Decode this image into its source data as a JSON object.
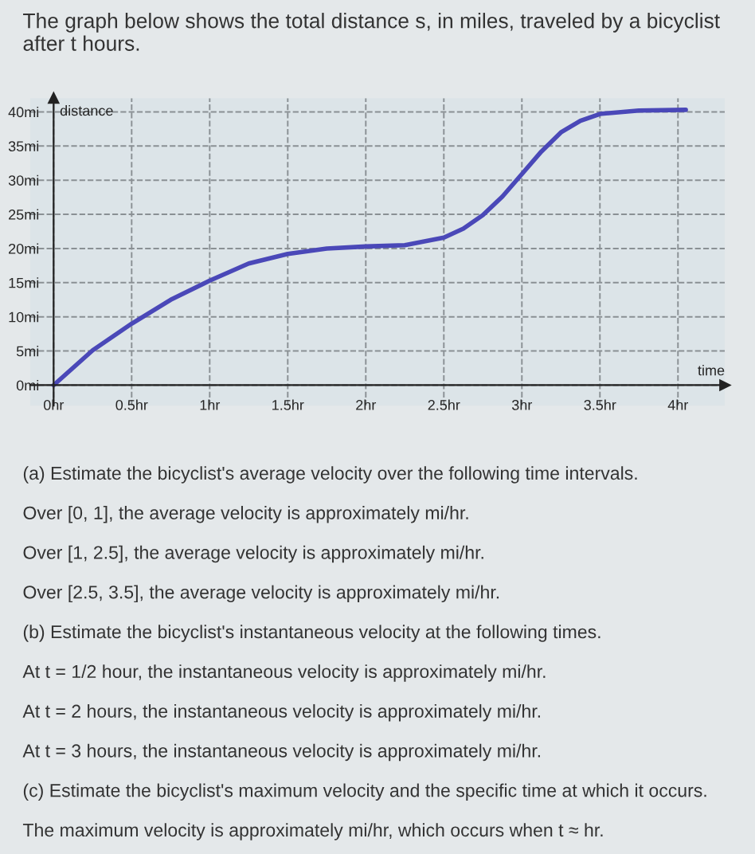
{
  "chart_data": {
    "type": "line",
    "title": "The graph below shows the total distance s, in miles, traveled by a bicyclist after t hours.",
    "xlabel": "time",
    "ylabel": "distance",
    "x": [
      0,
      0.25,
      0.5,
      0.75,
      1,
      1.25,
      1.5,
      1.75,
      2,
      2.25,
      2.5,
      2.625,
      2.75,
      2.875,
      3,
      3.125,
      3.25,
      3.375,
      3.5,
      3.75,
      4.05
    ],
    "series": [
      {
        "color": "#4a48b8",
        "values": [
          0,
          5.1,
          9,
          12.5,
          15.3,
          17.8,
          19.2,
          20,
          20.3,
          20.5,
          21.6,
          22.9,
          24.9,
          27.6,
          30.9,
          34.2,
          37,
          38.7,
          39.7,
          40.2,
          40.3
        ]
      }
    ],
    "xlim": [
      -0.15,
      4.3
    ],
    "ylim": [
      -3,
      42
    ],
    "xticks": [
      {
        "value": 0,
        "label": "0hr"
      },
      {
        "value": 0.5,
        "label": "0.5hr"
      },
      {
        "value": 1,
        "label": "1hr"
      },
      {
        "value": 1.5,
        "label": "1.5hr"
      },
      {
        "value": 2,
        "label": "2hr"
      },
      {
        "value": 2.5,
        "label": "2.5hr"
      },
      {
        "value": 3,
        "label": "3hr"
      },
      {
        "value": 3.5,
        "label": "3.5hr"
      },
      {
        "value": 4,
        "label": "4hr"
      }
    ],
    "yticks": [
      {
        "value": 0,
        "label": "0mi"
      },
      {
        "value": 5,
        "label": "5mi"
      },
      {
        "value": 10,
        "label": "10mi"
      },
      {
        "value": 15,
        "label": "15mi"
      },
      {
        "value": 20,
        "label": "20mi"
      },
      {
        "value": 25,
        "label": "25mi"
      },
      {
        "value": 30,
        "label": "30mi"
      },
      {
        "value": 35,
        "label": "35mi"
      },
      {
        "value": 40,
        "label": "40mi"
      }
    ],
    "grid": true,
    "line_style": "solid",
    "marker": "none",
    "annotations": [
      "(a) Estimate the bicyclist's average velocity over the following time intervals.",
      "Over [0, 1], the average velocity is approximately mi/hr.",
      "Over [1, 2.5], the average velocity is approximately mi/hr.",
      "Over [2.5, 3.5], the average velocity is approximately mi/hr.",
      "(b) Estimate the bicyclist's instantaneous velocity at the following times.",
      "At t = 1/2 hour, the instantaneous velocity is approximately mi/hr.",
      "At t = 2 hours, the instantaneous velocity is approximately mi/hr.",
      "At t = 3 hours, the instantaneous velocity is approximately mi/hr.",
      "(c) Estimate the bicyclist's maximum velocity and the specific time at which it occurs.",
      "The maximum velocity is approximately mi/hr, which occurs when t ≈ hr."
    ]
  }
}
